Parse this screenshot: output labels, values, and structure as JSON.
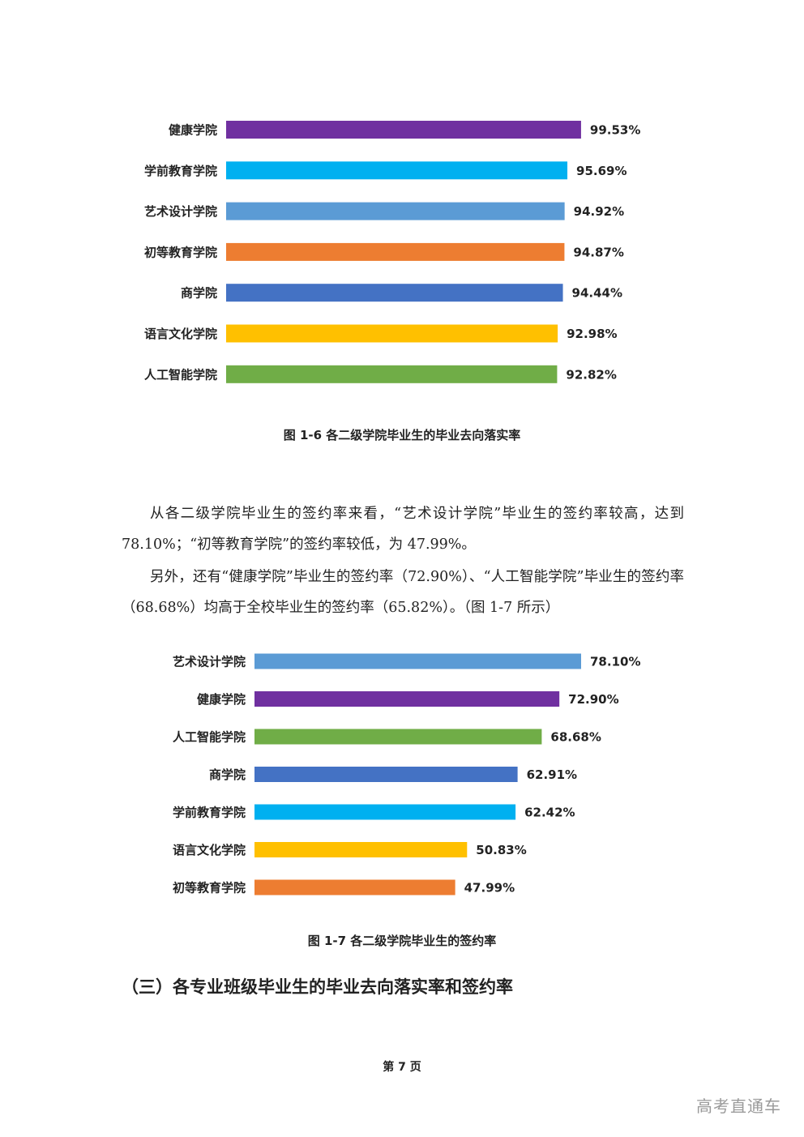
{
  "chart_data": [
    {
      "type": "bar",
      "orientation": "horizontal",
      "caption": "图 1-6  各二级学院毕业生的毕业去向落实率",
      "categories": [
        "健康学院",
        "学前教育学院",
        "艺术设计学院",
        "初等教育学院",
        "商学院",
        "语言文化学院",
        "人工智能学院"
      ],
      "values": [
        99.53,
        95.69,
        94.92,
        94.87,
        94.44,
        92.98,
        92.82
      ],
      "value_labels": [
        "99.53%",
        "95.69%",
        "94.92%",
        "94.87%",
        "94.44%",
        "92.98%",
        "92.82%"
      ],
      "colors": [
        "#7030a0",
        "#00b0f0",
        "#5b9bd5",
        "#ed7d31",
        "#4472c4",
        "#ffc000",
        "#70ad47"
      ],
      "xlim": [
        0,
        100
      ],
      "grid": false,
      "legend": "none"
    },
    {
      "type": "bar",
      "orientation": "horizontal",
      "caption": "图 1-7  各二级学院毕业生的签约率",
      "categories": [
        "艺术设计学院",
        "健康学院",
        "人工智能学院",
        "商学院",
        "学前教育学院",
        "语言文化学院",
        "初等教育学院"
      ],
      "values": [
        78.1,
        72.9,
        68.68,
        62.91,
        62.42,
        50.83,
        47.99
      ],
      "value_labels": [
        "78.10%",
        "72.90%",
        "68.68%",
        "62.91%",
        "62.42%",
        "50.83%",
        "47.99%"
      ],
      "colors": [
        "#5b9bd5",
        "#7030a0",
        "#70ad47",
        "#4472c4",
        "#00b0f0",
        "#ffc000",
        "#ed7d31"
      ],
      "xlim": [
        0,
        78.1
      ],
      "grid": false,
      "legend": "none"
    }
  ],
  "paragraphs": [
    "从各二级学院毕业生的签约率来看，“艺术设计学院”毕业生的签约率较高，达到 78.10%；“初等教育学院”的签约率较低，为 47.99%。",
    "另外，还有“健康学院”毕业生的签约率（72.90%）、“人工智能学院”毕业生的签约率（68.68%）均高于全校毕业生的签约率（65.82%）。（图 1-7 所示）"
  ],
  "section_heading": "（三）各专业班级毕业生的毕业去向落实率和签约率",
  "page_number": "第 7 页",
  "watermark": "高考直通车"
}
